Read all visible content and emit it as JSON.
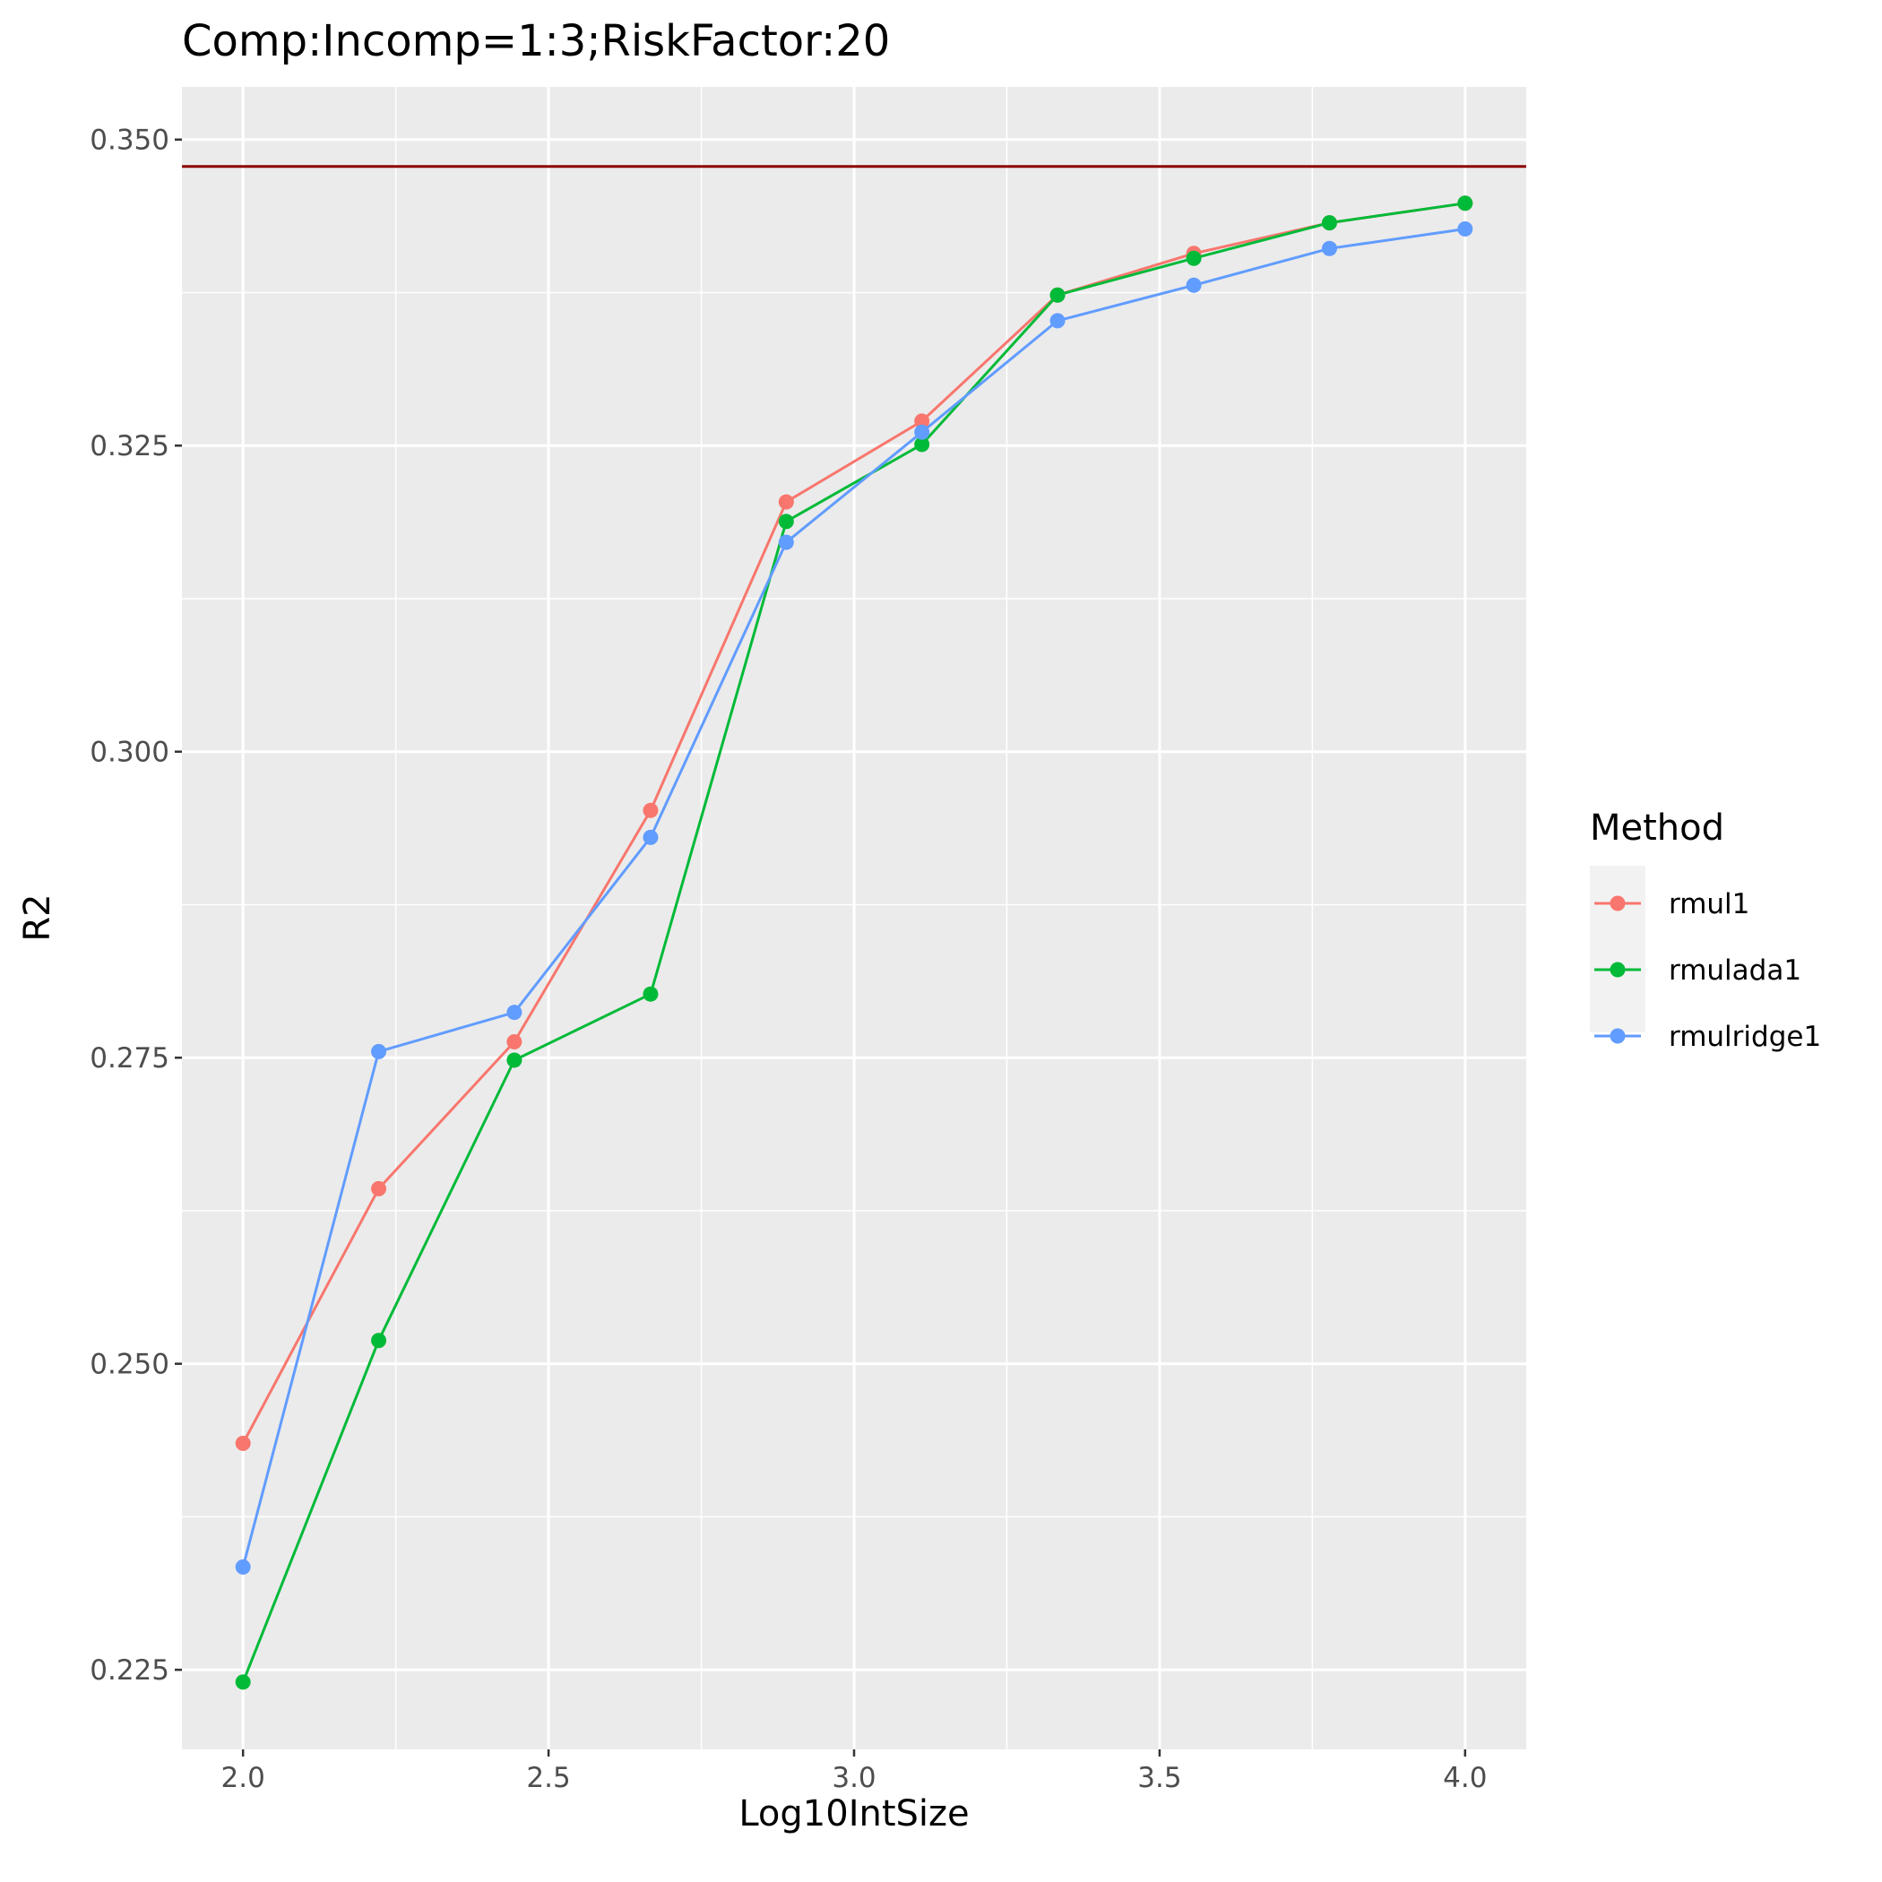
{
  "chart_data": {
    "type": "line",
    "title": "Comp:Incomp=1:3;RiskFactor:20",
    "xlabel": "Log10IntSize",
    "ylabel": "R2",
    "xlim": [
      1.9,
      4.1
    ],
    "ylim": [
      0.2185,
      0.3543
    ],
    "x_ticks": [
      "2.0",
      "2.5",
      "3.0",
      "3.5",
      "4.0"
    ],
    "y_ticks": [
      "0.225",
      "0.250",
      "0.275",
      "0.300",
      "0.325",
      "0.350"
    ],
    "x": [
      2.0,
      2.222,
      2.444,
      2.667,
      2.889,
      3.111,
      3.333,
      3.556,
      3.778,
      4.0
    ],
    "legend_title": "Method",
    "legend_position": "right",
    "grid": true,
    "reference_line": {
      "y": 0.3478,
      "color": "#8B0000"
    },
    "series": [
      {
        "name": "rmul1",
        "color": "#F8766D",
        "values": [
          0.2435,
          0.2643,
          0.2763,
          0.2952,
          0.3204,
          0.327,
          0.3373,
          0.3407,
          0.3432,
          0.3448
        ]
      },
      {
        "name": "rmulada1",
        "color": "#00BA38",
        "values": [
          0.224,
          0.2519,
          0.2748,
          0.2802,
          0.3188,
          0.3251,
          0.3373,
          0.3403,
          0.3432,
          0.3448
        ]
      },
      {
        "name": "rmulridge1",
        "color": "#619CFF",
        "values": [
          0.2334,
          0.2755,
          0.2787,
          0.293,
          0.3171,
          0.3261,
          0.3352,
          0.3381,
          0.3411,
          0.3427
        ]
      }
    ]
  }
}
